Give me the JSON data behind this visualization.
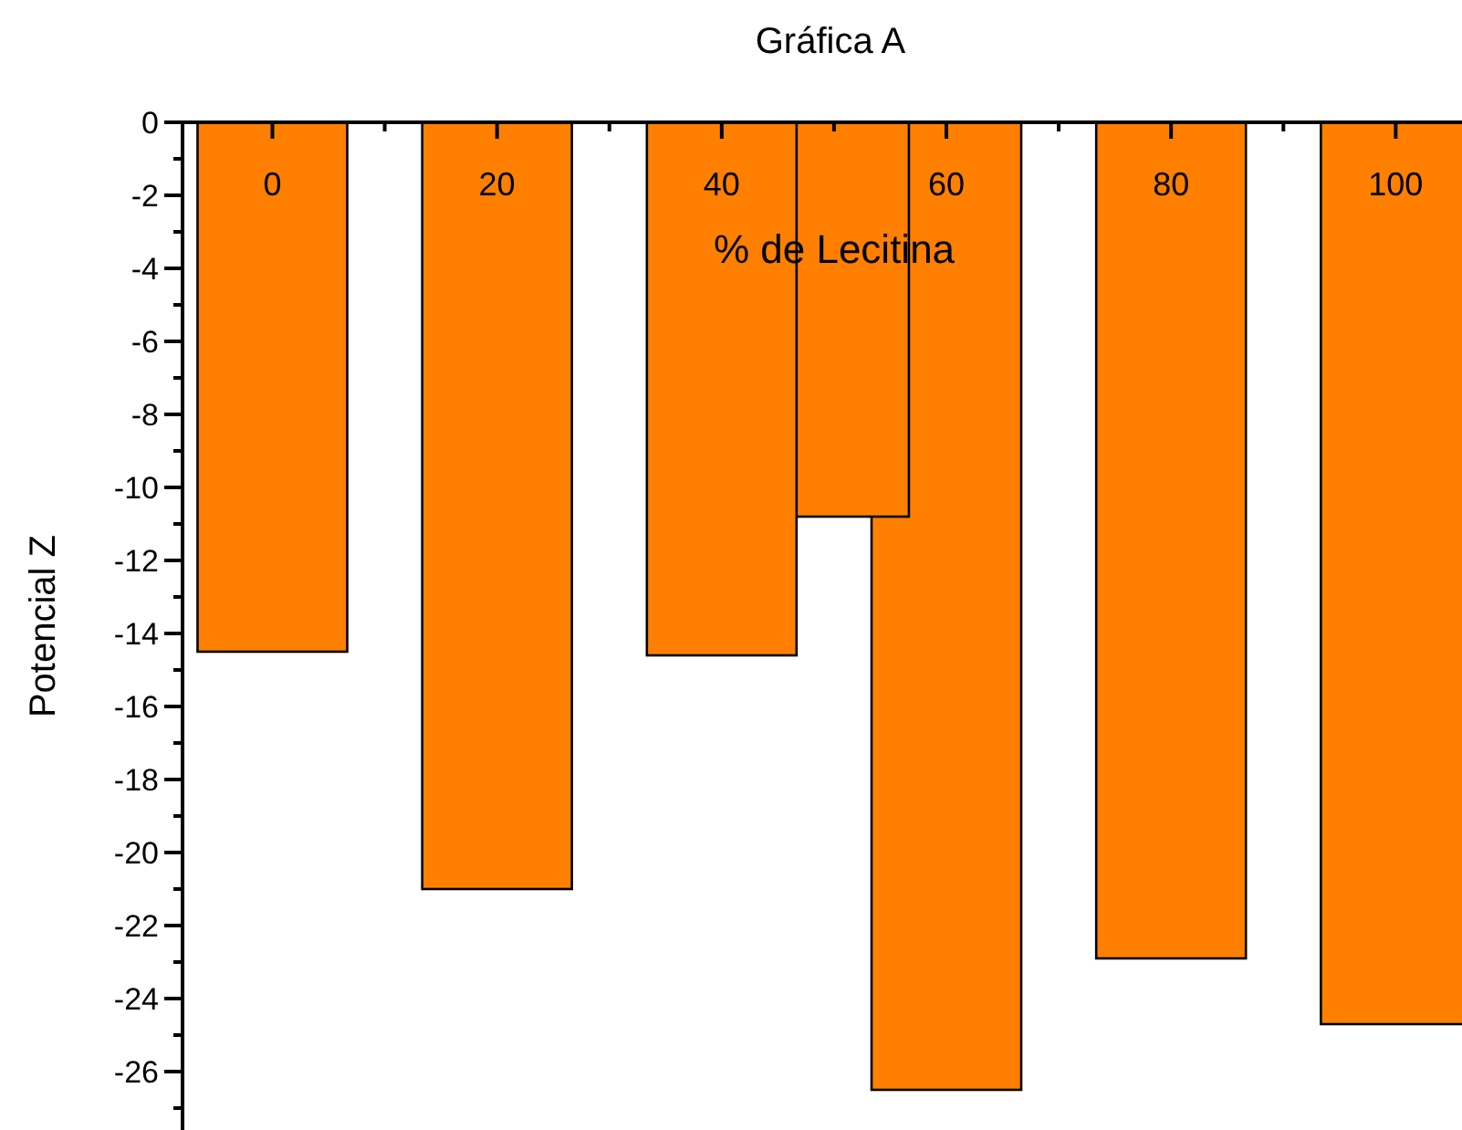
{
  "chart_data": {
    "type": "bar",
    "title": "Gráfica A",
    "xlabel": "% de Lecitina",
    "ylabel": "Potencial Z",
    "x": [
      0,
      20,
      40,
      50,
      60,
      80,
      100
    ],
    "values": [
      -14.5,
      -21,
      -14.6,
      -10.8,
      -26.5,
      -22.9,
      -24.7
    ],
    "color": "#ff8000",
    "xlim": [
      -8,
      105.9
    ],
    "xticks": [
      0,
      {
        "value": 10,
        "label": null
      },
      20,
      {
        "value": 30,
        "label": null
      },
      40,
      {
        "value": 50,
        "label": null
      },
      60,
      {
        "value": 70,
        "label": null
      },
      80,
      {
        "value": 90,
        "label": null
      },
      100
    ],
    "ylim": [
      -27.6,
      0
    ],
    "yticks": [
      0,
      {
        "value": -1,
        "label": null
      },
      -2,
      {
        "value": -3,
        "label": null
      },
      -4,
      {
        "value": -5,
        "label": null
      },
      -6,
      {
        "value": -7,
        "label": null
      },
      -8,
      {
        "value": -9,
        "label": null
      },
      -10,
      {
        "value": -11,
        "label": null
      },
      -12,
      {
        "value": -13,
        "label": null
      },
      -14,
      {
        "value": -15,
        "label": null
      },
      -16,
      {
        "value": -17,
        "label": null
      },
      -18,
      {
        "value": -19,
        "label": null
      },
      -20,
      {
        "value": -21,
        "label": null
      },
      -22,
      {
        "value": -23,
        "label": null
      },
      -24,
      {
        "value": -25,
        "label": null
      },
      -26,
      {
        "value": -27,
        "label": null
      }
    ],
    "grid": false
  }
}
